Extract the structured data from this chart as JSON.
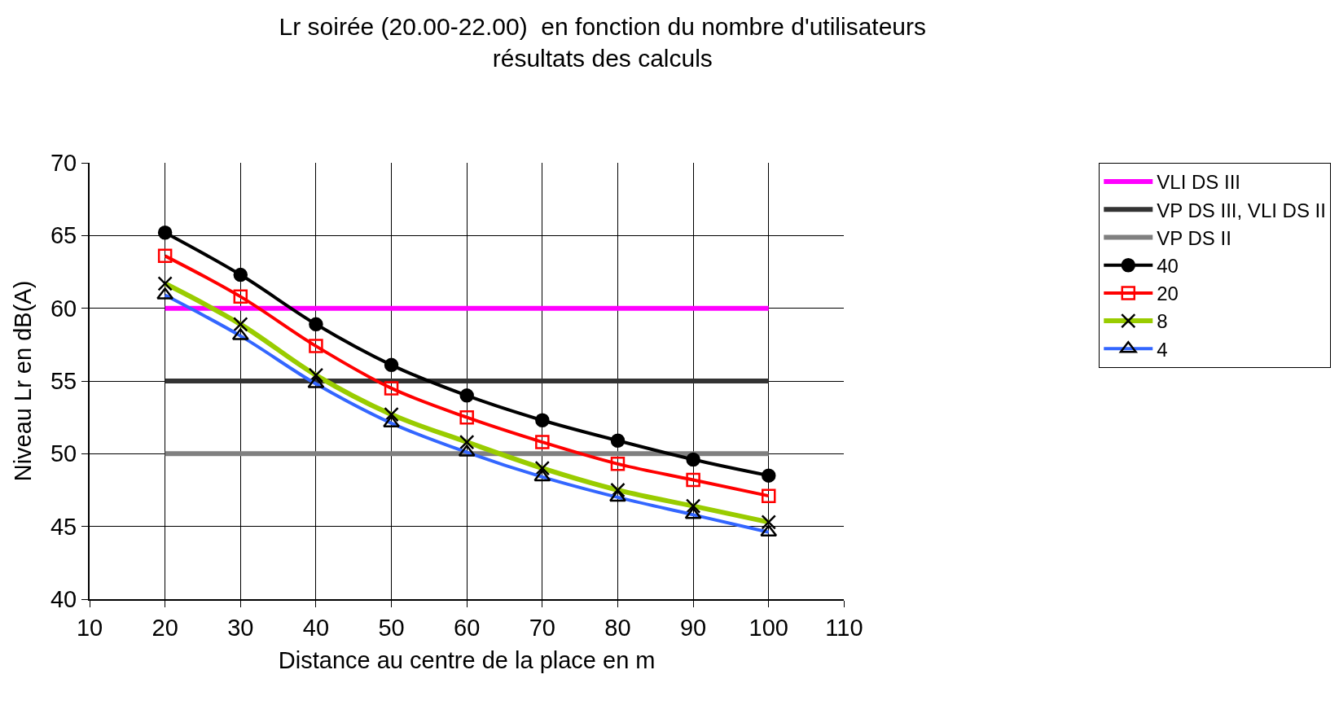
{
  "chart_data": {
    "type": "line",
    "title": "Lr soirée (20.00-22.00)  en fonction du nombre d'utilisateurs\nrésultats des calculs",
    "xlabel": "Distance au centre de la place en m",
    "ylabel": "Niveau Lr en dB(A)",
    "x": [
      20,
      30,
      40,
      50,
      60,
      70,
      80,
      90,
      100
    ],
    "series": [
      {
        "name": "VLI DS III",
        "color": "#ff00ff",
        "marker": "none",
        "values": [
          60,
          60,
          60,
          60,
          60,
          60,
          60,
          60,
          60
        ]
      },
      {
        "name": "VP DS III, VLI DS II",
        "color": "#333333",
        "marker": "none",
        "values": [
          55,
          55,
          55,
          55,
          55,
          55,
          55,
          55,
          55
        ]
      },
      {
        "name": "VP DS II",
        "color": "#808080",
        "marker": "none",
        "values": [
          50,
          50,
          50,
          50,
          50,
          50,
          50,
          50,
          50
        ]
      },
      {
        "name": "40",
        "color": "#000000",
        "marker": "circle",
        "values": [
          65.2,
          62.3,
          58.9,
          56.1,
          54.0,
          52.3,
          50.9,
          49.6,
          48.5
        ]
      },
      {
        "name": "20",
        "color": "#ff0000",
        "marker": "square",
        "values": [
          63.6,
          60.8,
          57.4,
          54.5,
          52.5,
          50.8,
          49.3,
          48.2,
          47.1
        ]
      },
      {
        "name": "8",
        "color": "#99cc00",
        "marker": "cross",
        "values": [
          61.7,
          58.9,
          55.4,
          52.7,
          50.8,
          49.0,
          47.5,
          46.4,
          45.3
        ]
      },
      {
        "name": "4",
        "color": "#3366ff",
        "marker": "triangle",
        "values": [
          60.9,
          58.1,
          54.8,
          52.1,
          50.1,
          48.4,
          47.0,
          45.8,
          44.6
        ]
      }
    ],
    "xlim": [
      10,
      110
    ],
    "xticks": [
      10,
      20,
      30,
      40,
      50,
      60,
      70,
      80,
      90,
      100,
      110
    ],
    "ylim": [
      40,
      70
    ],
    "yticks": [
      40,
      45,
      50,
      55,
      60,
      65,
      70
    ],
    "grid": true,
    "legend": "right",
    "line_style": "solid"
  }
}
